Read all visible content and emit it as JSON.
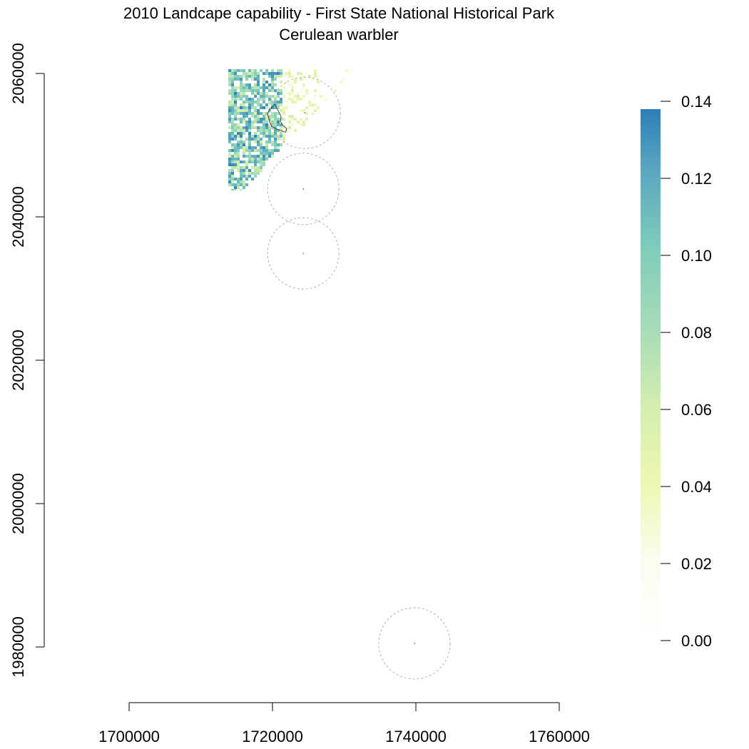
{
  "chart_data": {
    "type": "heatmap",
    "title": "2010 Landcape capability - First State National Historical Park",
    "subtitle": "Cerulean warbler",
    "xlabel": "",
    "ylabel": "",
    "xlim": [
      1680000,
      1760000
    ],
    "ylim": [
      1970000,
      2061000
    ],
    "x_ticks": [
      1700000,
      1720000,
      1740000,
      1760000
    ],
    "x_tick_labels": [
      "1700000",
      "1720000",
      "1740000",
      "1760000"
    ],
    "y_ticks": [
      1980000,
      2000000,
      2020000,
      2040000,
      2060000
    ],
    "y_tick_labels": [
      "1980000",
      "2000000",
      "2020000",
      "2040000",
      "2060000"
    ],
    "legend": {
      "type": "colorbar",
      "position": "right",
      "min": 0,
      "max": 0.14,
      "ticks": [
        0,
        0.02,
        0.04,
        0.06,
        0.08,
        0.1,
        0.12,
        0.14
      ],
      "tick_labels": [
        "0.00",
        "0.02",
        "0.04",
        "0.06",
        "0.08",
        "0.10",
        "0.12",
        "0.14"
      ],
      "color_stops": [
        {
          "value": 0.0,
          "color": "#ffffff"
        },
        {
          "value": 0.02,
          "color": "#fafdf0"
        },
        {
          "value": 0.04,
          "color": "#eef7b2"
        },
        {
          "value": 0.06,
          "color": "#d3eeae"
        },
        {
          "value": 0.08,
          "color": "#a6dcb8"
        },
        {
          "value": 0.1,
          "color": "#7fcdbb"
        },
        {
          "value": 0.12,
          "color": "#5ba7c0"
        },
        {
          "value": 0.136,
          "color": "#2c7fb8"
        }
      ]
    },
    "buffer_circles": [
      {
        "cx": 1724500,
        "cy": 2054500,
        "r": 5000
      },
      {
        "cx": 1724300,
        "cy": 2043900,
        "r": 5000
      },
      {
        "cx": 1724300,
        "cy": 2034900,
        "r": 5000
      },
      {
        "cx": 1739800,
        "cy": 1980500,
        "r": 5000
      }
    ],
    "raster_extent": {
      "xmin": 1714000,
      "xmax": 1731500,
      "ymin": 2044000,
      "ymax": 2060800
    },
    "park_boundary": [
      [
        1719300,
        2054400
      ],
      [
        1719700,
        2055100
      ],
      [
        1720300,
        2055700
      ],
      [
        1720800,
        2054800
      ],
      [
        1721200,
        2054000
      ],
      [
        1721100,
        2053300
      ],
      [
        1721500,
        2052700
      ],
      [
        1722000,
        2052300
      ],
      [
        1721800,
        2051800
      ],
      [
        1721300,
        2052000
      ],
      [
        1720700,
        2052200
      ],
      [
        1719900,
        2052600
      ],
      [
        1719600,
        2053300
      ],
      [
        1719300,
        2054400
      ]
    ]
  }
}
